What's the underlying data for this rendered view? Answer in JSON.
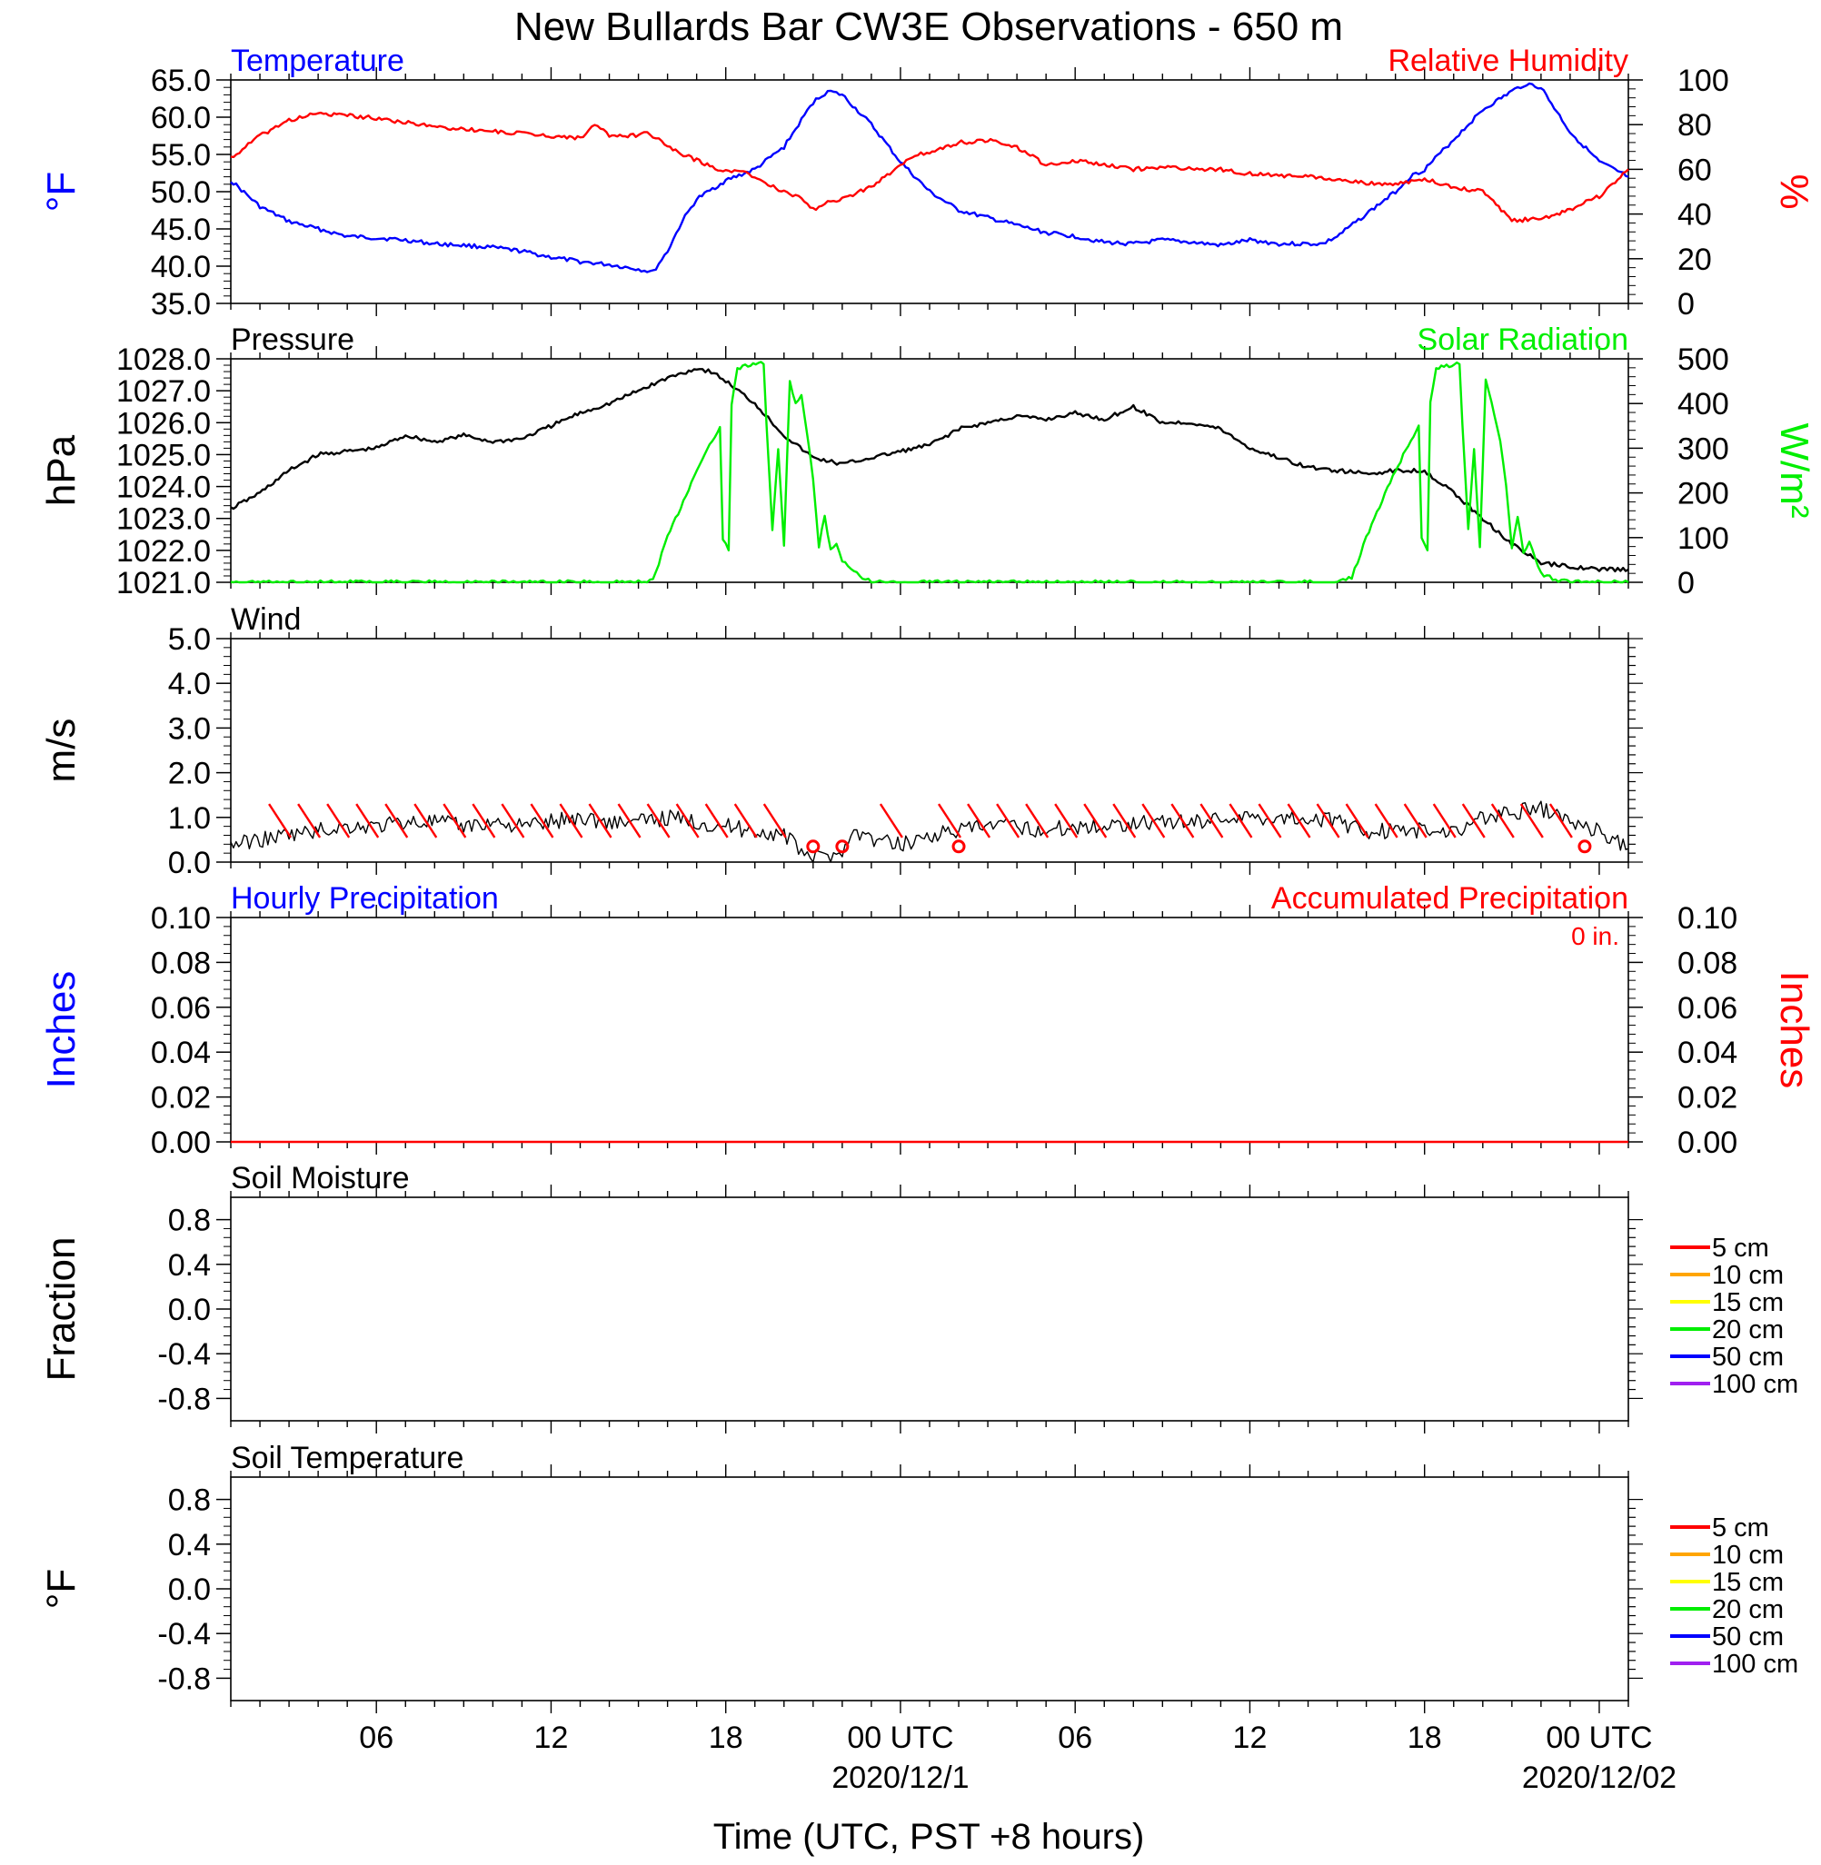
{
  "title": "New Bullards Bar CW3E Observations - 650 m",
  "colors": {
    "temperature": "#0000ff",
    "humidity": "#ff0000",
    "pressure": "#000000",
    "solar": "#00ee00",
    "wind": "#000000",
    "barb": "#ff0000"
  },
  "x_axis": {
    "xlabel": "Time (UTC, PST +8 hours)",
    "range_hours": [
      0,
      48
    ],
    "major_ticks": [
      {
        "hour": 5,
        "label": "06"
      },
      {
        "hour": 11,
        "label": "12"
      },
      {
        "hour": 17,
        "label": "18"
      },
      {
        "hour": 23,
        "label": "00 UTC"
      },
      {
        "hour": 29,
        "label": "06"
      },
      {
        "hour": 35,
        "label": "12"
      },
      {
        "hour": 41,
        "label": "18"
      },
      {
        "hour": 47,
        "label": "00 UTC"
      }
    ],
    "date_labels": [
      {
        "hour": 23,
        "label": "2020/12/1"
      },
      {
        "hour": 47,
        "label": "2020/12/02"
      }
    ]
  },
  "legend_soil": [
    "5 cm",
    "10 cm",
    "15 cm",
    "20 cm",
    "50 cm",
    "100 cm"
  ],
  "legend_soil_colors": [
    "#ff0000",
    "#ffa500",
    "#ffff00",
    "#00ee00",
    "#0000ff",
    "#a020f0"
  ],
  "chart_data": [
    {
      "type": "line",
      "panel": "temp_rh",
      "title_left": "Temperature",
      "title_right": "Relative Humidity",
      "ylabel_left": "°F",
      "ylabel_right": "%",
      "ylim_left": [
        35,
        65
      ],
      "ylim_right": [
        0,
        100
      ],
      "yticks_left": [
        "35.0",
        "40.0",
        "45.0",
        "50.0",
        "55.0",
        "60.0",
        "65.0"
      ],
      "yticks_right": [
        "0",
        "20",
        "40",
        "60",
        "80",
        "100"
      ],
      "series": [
        {
          "axis": "left",
          "x": [
            0,
            1,
            2,
            3,
            4,
            5,
            6,
            7,
            8,
            9,
            10,
            11,
            12,
            13,
            14,
            14.5,
            15,
            15.5,
            16,
            17,
            18,
            19,
            19.5,
            20,
            20.5,
            21,
            22,
            23,
            24,
            25,
            26,
            27,
            28,
            29,
            30,
            31,
            32,
            33,
            34,
            35,
            36,
            37,
            37.5,
            38,
            39,
            40,
            40.5,
            41,
            42,
            43,
            44,
            44.5,
            45,
            46,
            47,
            48
          ],
          "y": [
            51.5,
            48,
            46,
            45,
            44,
            43.8,
            43.5,
            43,
            42.8,
            42.5,
            42,
            41.2,
            40.6,
            40.2,
            39.6,
            39.2,
            42,
            46,
            49,
            51.5,
            53,
            56,
            59,
            62,
            63.5,
            63,
            59,
            54,
            50,
            47.5,
            46.5,
            45.5,
            44.5,
            44,
            43.2,
            43,
            43.5,
            43.2,
            42.8,
            43.5,
            43,
            43,
            43,
            44,
            47,
            50,
            52,
            53,
            57,
            61,
            63.5,
            64.5,
            64,
            58,
            54,
            52
          ]
        },
        {
          "axis": "right",
          "x": [
            0,
            0.5,
            1,
            2,
            3,
            4,
            5,
            6,
            7,
            8,
            9,
            10,
            11,
            12,
            12.5,
            13,
            14,
            14.3,
            15,
            16,
            17,
            17.5,
            18,
            19,
            19.5,
            20,
            20.5,
            21,
            22,
            23,
            23.5,
            24,
            25,
            26,
            27,
            28,
            29,
            30,
            31,
            32,
            33,
            34,
            35,
            36,
            37,
            38,
            39,
            40,
            41,
            42,
            43,
            44,
            45,
            46,
            47,
            48
          ],
          "y": [
            65,
            70,
            75,
            82,
            85,
            84,
            83,
            81,
            79,
            78,
            77,
            76,
            75,
            74,
            80,
            75,
            75,
            77,
            70,
            64,
            59,
            60,
            56,
            50,
            48,
            42,
            45,
            47,
            52,
            62,
            66,
            68,
            72,
            73,
            70,
            62,
            64,
            62,
            60,
            61,
            60,
            60,
            58,
            57,
            57,
            55,
            54,
            53,
            56,
            52,
            50,
            37,
            38,
            42,
            48,
            60
          ]
        }
      ]
    },
    {
      "type": "line",
      "panel": "pressure_solar",
      "title_left": "Pressure",
      "title_right": "Solar Radiation",
      "ylabel_left": "hPa",
      "ylabel_right": "W/m²",
      "ylim_left": [
        1021,
        1028
      ],
      "ylim_right": [
        0,
        500
      ],
      "yticks_left": [
        "1021.0",
        "1022.0",
        "1023.0",
        "1024.0",
        "1025.0",
        "1026.0",
        "1027.0",
        "1028.0"
      ],
      "yticks_right": [
        "0",
        "100",
        "200",
        "300",
        "400",
        "500"
      ],
      "series": [
        {
          "axis": "left",
          "x": [
            0,
            1,
            2,
            3,
            4,
            5,
            6,
            7,
            8,
            9,
            10,
            11,
            12,
            13,
            14,
            15,
            16,
            16.5,
            17,
            18,
            19,
            20,
            21,
            22,
            23,
            24,
            25,
            26,
            27,
            28,
            29,
            30,
            31,
            32,
            33,
            34,
            35,
            36,
            37,
            38,
            39,
            40,
            41,
            42,
            43,
            44,
            45,
            46,
            47,
            48
          ],
          "y": [
            1023.3,
            1023.8,
            1024.5,
            1025.0,
            1025.1,
            1025.2,
            1025.6,
            1025.4,
            1025.6,
            1025.4,
            1025.5,
            1025.9,
            1026.3,
            1026.6,
            1027.0,
            1027.4,
            1027.7,
            1027.6,
            1027.3,
            1026.6,
            1025.6,
            1024.9,
            1024.7,
            1024.9,
            1025.1,
            1025.3,
            1025.8,
            1026.0,
            1026.2,
            1026.1,
            1026.3,
            1026.1,
            1026.5,
            1026.0,
            1026.0,
            1025.8,
            1025.2,
            1024.9,
            1024.6,
            1024.5,
            1024.4,
            1024.5,
            1024.5,
            1023.8,
            1023.0,
            1022.2,
            1021.6,
            1021.5,
            1021.4,
            1021.4
          ],
          "name": ""
        },
        {
          "axis": "right",
          "x": [
            0,
            14,
            14.5,
            15,
            16,
            16.8,
            16.9,
            17.1,
            17.2,
            17.4,
            18.3,
            18.4,
            18.6,
            18.8,
            19.0,
            19.2,
            19.4,
            19.6,
            19.8,
            20.0,
            20.2,
            20.4,
            20.6,
            20.8,
            21.0,
            21.5,
            22,
            24,
            38,
            38.5,
            39,
            40,
            40.8,
            40.9,
            41.1,
            41.2,
            41.4,
            42.2,
            42.3,
            42.5,
            42.7,
            42.9,
            43.1,
            43.3,
            43.6,
            43.8,
            44.0,
            44.2,
            44.4,
            44.6,
            44.8,
            45.0,
            45.5,
            46,
            48
          ],
          "y": [
            0,
            0,
            5,
            100,
            250,
            350,
            100,
            70,
            400,
            480,
            490,
            350,
            120,
            300,
            80,
            450,
            400,
            420,
            330,
            230,
            80,
            150,
            70,
            90,
            50,
            20,
            0,
            0,
            0,
            10,
            100,
            250,
            350,
            100,
            70,
            400,
            480,
            490,
            350,
            120,
            300,
            80,
            450,
            400,
            320,
            220,
            80,
            150,
            70,
            90,
            50,
            20,
            5,
            0,
            0
          ]
        }
      ]
    },
    {
      "type": "line",
      "panel": "wind",
      "title_left": "Wind",
      "ylabel_left": "m/s",
      "ylim_left": [
        0,
        5
      ],
      "yticks_left": [
        "0.0",
        "1.0",
        "2.0",
        "3.0",
        "4.0",
        "5.0"
      ],
      "series": [
        {
          "axis": "left",
          "x": [
            0,
            1,
            2,
            3,
            4,
            5,
            6,
            7,
            8,
            9,
            10,
            11,
            12,
            13,
            14,
            15,
            16,
            17,
            18,
            19,
            19.5,
            20,
            20.5,
            21,
            21.5,
            22,
            23,
            24,
            25,
            26,
            27,
            28,
            29,
            30,
            31,
            32,
            33,
            34,
            35,
            36,
            37,
            38,
            39,
            40,
            41,
            42,
            43,
            44,
            45,
            46,
            47,
            48
          ],
          "y": [
            0.4,
            0.5,
            0.6,
            0.7,
            0.8,
            0.8,
            0.9,
            0.9,
            0.8,
            0.9,
            0.8,
            0.9,
            1.0,
            0.9,
            0.9,
            1.0,
            0.9,
            0.8,
            0.7,
            0.6,
            0.3,
            0.1,
            0.1,
            0.3,
            0.7,
            0.5,
            0.4,
            0.6,
            0.7,
            0.8,
            0.8,
            0.7,
            0.8,
            0.8,
            0.9,
            0.9,
            0.9,
            1.0,
            1.0,
            1.0,
            1.0,
            0.9,
            0.7,
            0.7,
            0.7,
            0.7,
            1.0,
            1.1,
            1.2,
            0.9,
            0.7,
            0.3
          ]
        }
      ],
      "barbs": {
        "hours": [
          1.5,
          2.5,
          3.5,
          4.5,
          5.5,
          6.5,
          7.5,
          8.5,
          9.5,
          10.5,
          11.5,
          12.5,
          13.5,
          14.5,
          15.5,
          16.5,
          17.5,
          18.5,
          22.5,
          24.5,
          25.5,
          26.5,
          27.5,
          28.5,
          29.5,
          30.5,
          31.5,
          32.5,
          33.5,
          34.5,
          35.5,
          36.5,
          37.5,
          38.5,
          39.5,
          40.5,
          41.5,
          42.5,
          43.5,
          44.5,
          45.5
        ],
        "calm_hours": [
          20,
          21,
          25,
          46.5
        ]
      }
    },
    {
      "type": "line",
      "panel": "precip",
      "title_left": "Hourly Precipitation",
      "title_right": "Accumulated Precipitation",
      "annotation": "0 in.",
      "ylabel_left": "Inches",
      "ylabel_right": "Inches",
      "ylim_left": [
        0,
        0.1
      ],
      "ylim_right": [
        0,
        0.1
      ],
      "yticks_left": [
        "0.00",
        "0.02",
        "0.04",
        "0.06",
        "0.08",
        "0.10"
      ],
      "yticks_right": [
        "0.00",
        "0.02",
        "0.04",
        "0.06",
        "0.08",
        "0.10"
      ],
      "series": [
        {
          "axis": "right",
          "x": [
            0,
            48
          ],
          "y": [
            0,
            0
          ]
        }
      ]
    },
    {
      "type": "line",
      "panel": "soil_moisture",
      "title_left": "Soil Moisture",
      "ylabel_left": "Fraction",
      "ylim_left": [
        -1,
        1
      ],
      "yticks_left": [
        "-0.8",
        "-0.4",
        "0.0",
        "0.4",
        "0.8"
      ],
      "series": []
    },
    {
      "type": "line",
      "panel": "soil_temperature",
      "title_left": "Soil Temperature",
      "ylabel_left": "°F",
      "ylim_left": [
        -1,
        1
      ],
      "yticks_left": [
        "-0.8",
        "-0.4",
        "0.0",
        "0.4",
        "0.8"
      ],
      "series": []
    }
  ]
}
